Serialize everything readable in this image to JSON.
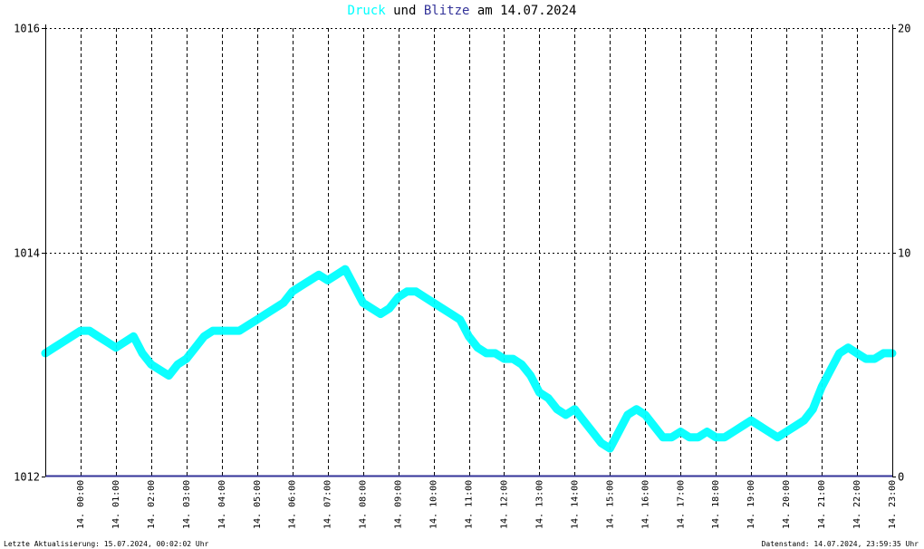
{
  "title": {
    "series1": "Druck",
    "word_und": "und",
    "series2": "Blitze",
    "date_text": "am 14.07.2024"
  },
  "colors": {
    "druck": "#00ffff",
    "blitze": "#333399",
    "grid": "#000000",
    "text": "#000000"
  },
  "footer": {
    "left": "Letzte Aktualisierung: 15.07.2024, 00:02:02 Uhr",
    "right": "Datenstand: 14.07.2024, 23:59:35 Uhr"
  },
  "chart_data": {
    "type": "line",
    "title": "Druck und Blitze am 14.07.2024",
    "y_left": {
      "ticks": [
        "1012",
        "1014",
        "1016"
      ],
      "range": [
        1012,
        1016
      ]
    },
    "y_right": {
      "ticks": [
        "0",
        "10",
        "20"
      ],
      "range": [
        0,
        20
      ]
    },
    "x_ticks": [
      "14. 00:00",
      "14. 01:00",
      "14. 02:00",
      "14. 03:00",
      "14. 04:00",
      "14. 05:00",
      "14. 06:00",
      "14. 07:00",
      "14. 08:00",
      "14. 09:00",
      "14. 10:00",
      "14. 11:00",
      "14. 12:00",
      "14. 13:00",
      "14. 14:00",
      "14. 15:00",
      "14. 16:00",
      "14. 17:00",
      "14. 18:00",
      "14. 19:00",
      "14. 20:00",
      "14. 21:00",
      "14. 22:00",
      "14. 23:00"
    ],
    "x_range_hours": [
      0,
      24
    ],
    "grid": true,
    "series": [
      {
        "name": "Druck",
        "axis": "left",
        "x_hours": [
          0,
          0.25,
          0.5,
          0.75,
          1,
          1.25,
          1.5,
          1.75,
          2,
          2.25,
          2.5,
          2.75,
          3,
          3.25,
          3.5,
          3.75,
          4,
          4.25,
          4.5,
          4.75,
          5,
          5.25,
          5.5,
          5.75,
          6,
          6.25,
          6.5,
          6.75,
          7,
          7.25,
          7.5,
          7.75,
          8,
          8.25,
          8.5,
          8.75,
          9,
          9.25,
          9.5,
          9.75,
          10,
          10.25,
          10.5,
          10.75,
          11,
          11.25,
          11.5,
          11.75,
          12,
          12.25,
          12.5,
          12.75,
          13,
          13.25,
          13.5,
          13.75,
          14,
          14.25,
          14.5,
          14.75,
          15,
          15.25,
          15.5,
          15.75,
          16,
          16.25,
          16.5,
          16.75,
          17,
          17.25,
          17.5,
          17.75,
          18,
          18.25,
          18.5,
          18.75,
          19,
          19.25,
          19.5,
          19.75,
          20,
          20.25,
          20.5,
          20.75,
          21,
          21.25,
          21.5,
          21.75,
          22,
          22.25,
          22.5,
          22.75,
          23,
          23.25,
          23.5,
          23.75,
          24
        ],
        "values": [
          1013.1,
          1013.15,
          1013.2,
          1013.25,
          1013.3,
          1013.3,
          1013.25,
          1013.2,
          1013.15,
          1013.2,
          1013.25,
          1013.1,
          1013.0,
          1012.95,
          1012.9,
          1013.0,
          1013.05,
          1013.15,
          1013.25,
          1013.3,
          1013.3,
          1013.3,
          1013.3,
          1013.35,
          1013.4,
          1013.45,
          1013.5,
          1013.55,
          1013.65,
          1013.7,
          1013.75,
          1013.8,
          1013.75,
          1013.8,
          1013.85,
          1013.7,
          1013.55,
          1013.5,
          1013.45,
          1013.5,
          1013.6,
          1013.65,
          1013.65,
          1013.6,
          1013.55,
          1013.5,
          1013.45,
          1013.4,
          1013.25,
          1013.15,
          1013.1,
          1013.1,
          1013.05,
          1013.05,
          1013.0,
          1012.9,
          1012.75,
          1012.7,
          1012.6,
          1012.55,
          1012.6,
          1012.5,
          1012.4,
          1012.3,
          1012.25,
          1012.4,
          1012.55,
          1012.6,
          1012.55,
          1012.45,
          1012.35,
          1012.35,
          1012.4,
          1012.35,
          1012.35,
          1012.4,
          1012.35,
          1012.35,
          1012.4,
          1012.45,
          1012.5,
          1012.45,
          1012.4,
          1012.35,
          1012.4,
          1012.45,
          1012.5,
          1012.6,
          1012.8,
          1012.95,
          1013.1,
          1013.15,
          1013.1,
          1013.05,
          1013.05,
          1013.1,
          1013.1
        ]
      },
      {
        "name": "Blitze",
        "axis": "right",
        "x_hours": [
          0,
          24
        ],
        "values": [
          0,
          0
        ]
      }
    ]
  }
}
